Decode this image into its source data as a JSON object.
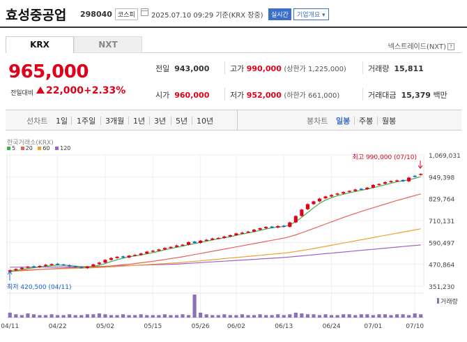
{
  "header": {
    "company_name": "효성중공업",
    "code": "298040",
    "market_badge": "코스피",
    "datetime": "2025.07.10 09:29  기준(KRX 장중)",
    "realtime_label": "실시간",
    "corp_info_label": "기업개요 ▾"
  },
  "tabs": [
    {
      "label": "KRX",
      "active": true
    },
    {
      "label": "NXT",
      "active": false
    }
  ],
  "nextrade_label": "넥스트레이드(NXT)",
  "price": {
    "current": "965,000",
    "change_label": "전일대비",
    "change": "22,000",
    "change_pct": "+2.33%"
  },
  "stats": {
    "prev_close": {
      "label": "전일",
      "value": "943,000"
    },
    "high": {
      "label": "고가",
      "value": "990,000",
      "note": "(상한가 1,225,000)"
    },
    "volume": {
      "label": "거래량",
      "value": "15,811"
    },
    "open": {
      "label": "시가",
      "value": "960,000"
    },
    "low": {
      "label": "저가",
      "value": "952,000",
      "note": "(하한가 661,000)"
    },
    "amount": {
      "label": "거래대금",
      "value": "15,379",
      "unit": "백만"
    }
  },
  "period_bar": {
    "line_label": "선차트",
    "periods": [
      "1일",
      "1주일",
      "3개월",
      "1년",
      "3년",
      "5년",
      "10년"
    ],
    "candle_label": "봉차트",
    "candle_types": [
      "일봉",
      "주봉",
      "월봉"
    ],
    "active_candle": "일봉"
  },
  "colors": {
    "up": "#e0001a",
    "down": "#1a5fd6",
    "ma5": "#3cb043",
    "ma20": "#e8625a",
    "ma60": "#f0a030",
    "ma120": "#a060c8",
    "volume": "#8a70b8"
  },
  "chart_data": {
    "type": "candlestick",
    "source": "한국거래소(KRX)",
    "legend": [
      {
        "name": "5",
        "color": "#3cb043"
      },
      {
        "name": "20",
        "color": "#e8625a"
      },
      {
        "name": "60",
        "color": "#f0a030"
      },
      {
        "name": "120",
        "color": "#a060c8"
      }
    ],
    "y_ticks": [
      "1,069,031",
      "949,398",
      "829,764",
      "710,131",
      "590,497",
      "470,864",
      "351,230"
    ],
    "y_tick_values": [
      1069031,
      949398,
      829764,
      710131,
      590497,
      470864,
      351230
    ],
    "x_ticks": [
      "04/11",
      "04/22",
      "05/02",
      "05/15",
      "05/26",
      "06/02",
      "06/13",
      "06/24",
      "07/01",
      "07/10"
    ],
    "high_annotation": "최고 990,000 (07/10)",
    "low_annotation": "최저 420,500 (04/11)",
    "volume_label": "거래량",
    "closes": [
      438000,
      445000,
      452000,
      458000,
      455000,
      462000,
      468000,
      472000,
      470000,
      466000,
      460000,
      455000,
      452000,
      458000,
      470000,
      480000,
      495000,
      505000,
      512000,
      508000,
      518000,
      522000,
      530000,
      540000,
      545000,
      552000,
      560000,
      566000,
      574000,
      578000,
      592000,
      588000,
      600000,
      605000,
      612000,
      615000,
      623000,
      630000,
      640000,
      644000,
      650000,
      660000,
      668000,
      675000,
      672000,
      680000,
      676000,
      700000,
      735000,
      770000,
      800000,
      815000,
      830000,
      842000,
      850000,
      858000,
      866000,
      872000,
      880000,
      882000,
      890000,
      905000,
      910000,
      920000,
      926000,
      930000,
      925000,
      945000,
      950000,
      965000
    ],
    "opens": [
      430000,
      438000,
      445000,
      452000,
      460000,
      455000,
      462000,
      468000,
      474000,
      470000,
      466000,
      460000,
      455000,
      450000,
      460000,
      472000,
      480000,
      495000,
      505000,
      514000,
      508000,
      518000,
      522000,
      530000,
      540000,
      545000,
      552000,
      560000,
      566000,
      574000,
      578000,
      595000,
      588000,
      600000,
      605000,
      612000,
      615000,
      623000,
      630000,
      640000,
      646000,
      650000,
      660000,
      668000,
      677000,
      672000,
      682000,
      676000,
      700000,
      735000,
      772000,
      800000,
      815000,
      832000,
      842000,
      852000,
      858000,
      868000,
      872000,
      884000,
      882000,
      890000,
      905000,
      912000,
      920000,
      926000,
      932000,
      925000,
      955000,
      960000
    ],
    "ma5": [
      430000,
      436000,
      442000,
      448000,
      452000,
      456000,
      460000,
      464000,
      466000,
      466000,
      464000,
      461000,
      458000,
      456000,
      459000,
      466000,
      475000,
      486000,
      496000,
      504000,
      512000,
      517000,
      522000,
      528000,
      535000,
      542000,
      550000,
      557000,
      564000,
      570000,
      578000,
      584000,
      591000,
      597000,
      604000,
      610000,
      616000,
      622000,
      629000,
      636000,
      642000,
      649000,
      656000,
      664000,
      670000,
      675000,
      677000,
      686000,
      704000,
      728000,
      754000,
      780000,
      804000,
      822000,
      835000,
      846000,
      854000,
      862000,
      869000,
      876000,
      882000,
      890000,
      898000,
      906000,
      914000,
      922000,
      927000,
      934000,
      941000,
      950000
    ],
    "ma20": [
      432000,
      434000,
      436000,
      438000,
      440000,
      442000,
      444000,
      446000,
      448000,
      450000,
      452000,
      453000,
      454000,
      455000,
      456000,
      457000,
      459000,
      462000,
      465000,
      468000,
      471000,
      475000,
      479000,
      483000,
      487000,
      492000,
      497000,
      502000,
      507000,
      512000,
      518000,
      524000,
      530000,
      536000,
      542000,
      548000,
      554000,
      560000,
      566000,
      572000,
      578000,
      584000,
      590000,
      596000,
      602000,
      608000,
      614000,
      622000,
      632000,
      643000,
      655000,
      667000,
      679000,
      691000,
      703000,
      715000,
      727000,
      738000,
      749000,
      760000,
      770000,
      780000,
      790000,
      800000,
      810000,
      820000,
      829000,
      838000,
      847000,
      856000
    ],
    "ma60": [
      438000,
      439000,
      440000,
      441000,
      442000,
      443000,
      444000,
      445000,
      446000,
      447000,
      448000,
      449000,
      450000,
      451000,
      452000,
      453000,
      455000,
      457000,
      459000,
      461000,
      463000,
      465000,
      467000,
      469000,
      471000,
      473000,
      475000,
      477000,
      479000,
      481000,
      484000,
      487000,
      490000,
      493000,
      496000,
      499000,
      502000,
      505000,
      508000,
      511000,
      514000,
      517000,
      520000,
      523000,
      526000,
      529000,
      532000,
      536000,
      541000,
      546000,
      551000,
      557000,
      563000,
      569000,
      575000,
      581000,
      587000,
      593000,
      599000,
      605000,
      611000,
      617000,
      623000,
      629000,
      635000,
      641000,
      647000,
      653000,
      659000,
      665000
    ],
    "ma120": [
      455000,
      455000,
      455000,
      455000,
      455000,
      456000,
      456000,
      456000,
      456000,
      457000,
      457000,
      457000,
      458000,
      458000,
      459000,
      459000,
      460000,
      461000,
      462000,
      463000,
      464000,
      465000,
      466000,
      467000,
      468000,
      469000,
      470000,
      471000,
      472000,
      474000,
      476000,
      478000,
      480000,
      482000,
      484000,
      486000,
      488000,
      490000,
      492000,
      494000,
      496000,
      498000,
      500000,
      502000,
      504000,
      506000,
      508000,
      511000,
      514000,
      517000,
      520000,
      523000,
      526000,
      529000,
      532000,
      535000,
      538000,
      541000,
      544000,
      547000,
      550000,
      553000,
      556000,
      559000,
      562000,
      565000,
      568000,
      571000,
      574000,
      577000
    ],
    "volumes": [
      6,
      4,
      3,
      5,
      4,
      3,
      3,
      4,
      3,
      3,
      4,
      3,
      3,
      4,
      4,
      5,
      4,
      3,
      3,
      4,
      3,
      3,
      4,
      3,
      3,
      3,
      4,
      3,
      3,
      4,
      3,
      28,
      6,
      4,
      3,
      3,
      4,
      3,
      3,
      4,
      3,
      3,
      4,
      3,
      3,
      4,
      3,
      4,
      6,
      5,
      4,
      4,
      3,
      4,
      3,
      3,
      4,
      4,
      3,
      4,
      4,
      3,
      4,
      4,
      3,
      4,
      4,
      3,
      5,
      4
    ]
  }
}
